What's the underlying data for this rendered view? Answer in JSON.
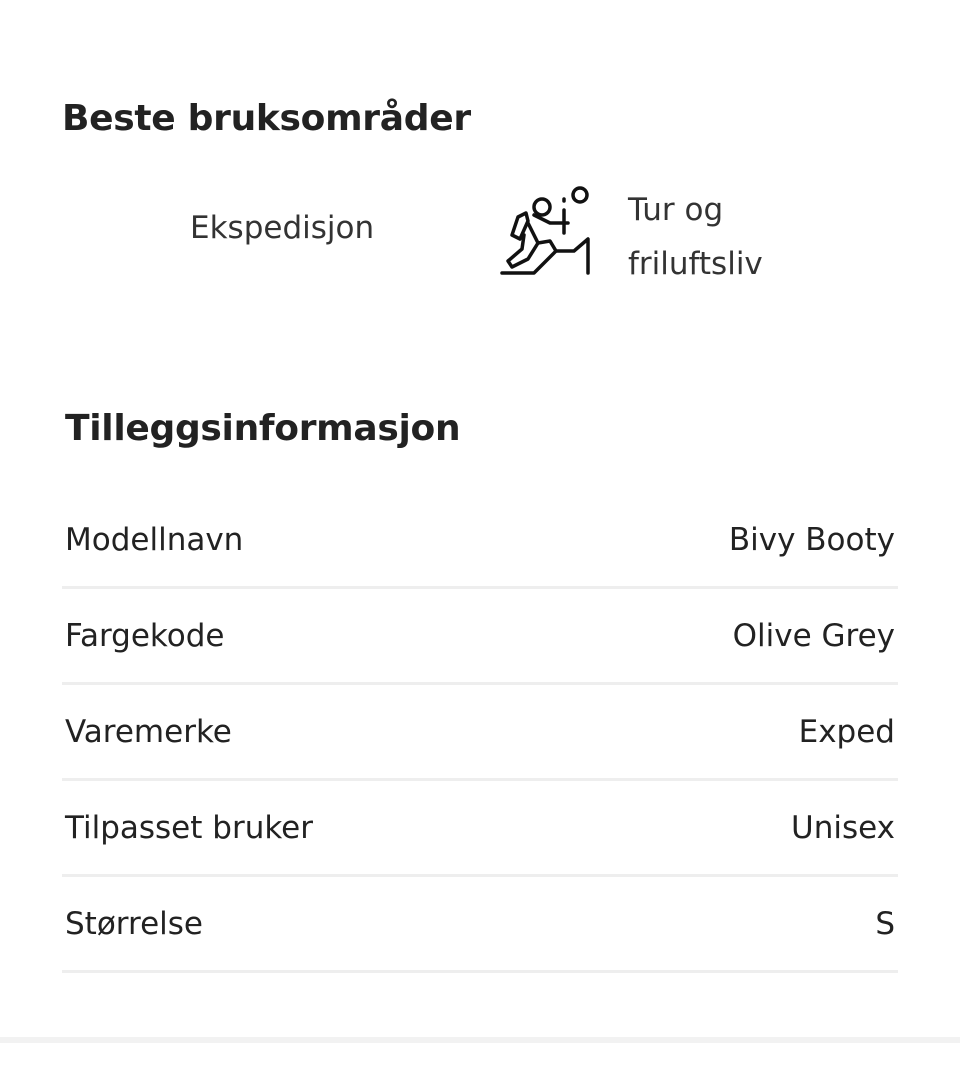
{
  "best_use": {
    "title": "Beste bruksområder",
    "items": [
      {
        "label": "Ekspedisjon",
        "icon": ""
      },
      {
        "label_line1": "Tur og",
        "label_line2": "friluftsliv",
        "icon": "hiker-climbing-icon"
      }
    ]
  },
  "additional_info": {
    "title": "Tilleggsinformasjon",
    "rows": [
      {
        "label": "Modellnavn",
        "value": "Bivy Booty"
      },
      {
        "label": "Fargekode",
        "value": "Olive Grey"
      },
      {
        "label": "Varemerke",
        "value": "Exped"
      },
      {
        "label": "Tilpasset bruker",
        "value": "Unisex"
      },
      {
        "label": "Størrelse",
        "value": "S"
      }
    ]
  }
}
